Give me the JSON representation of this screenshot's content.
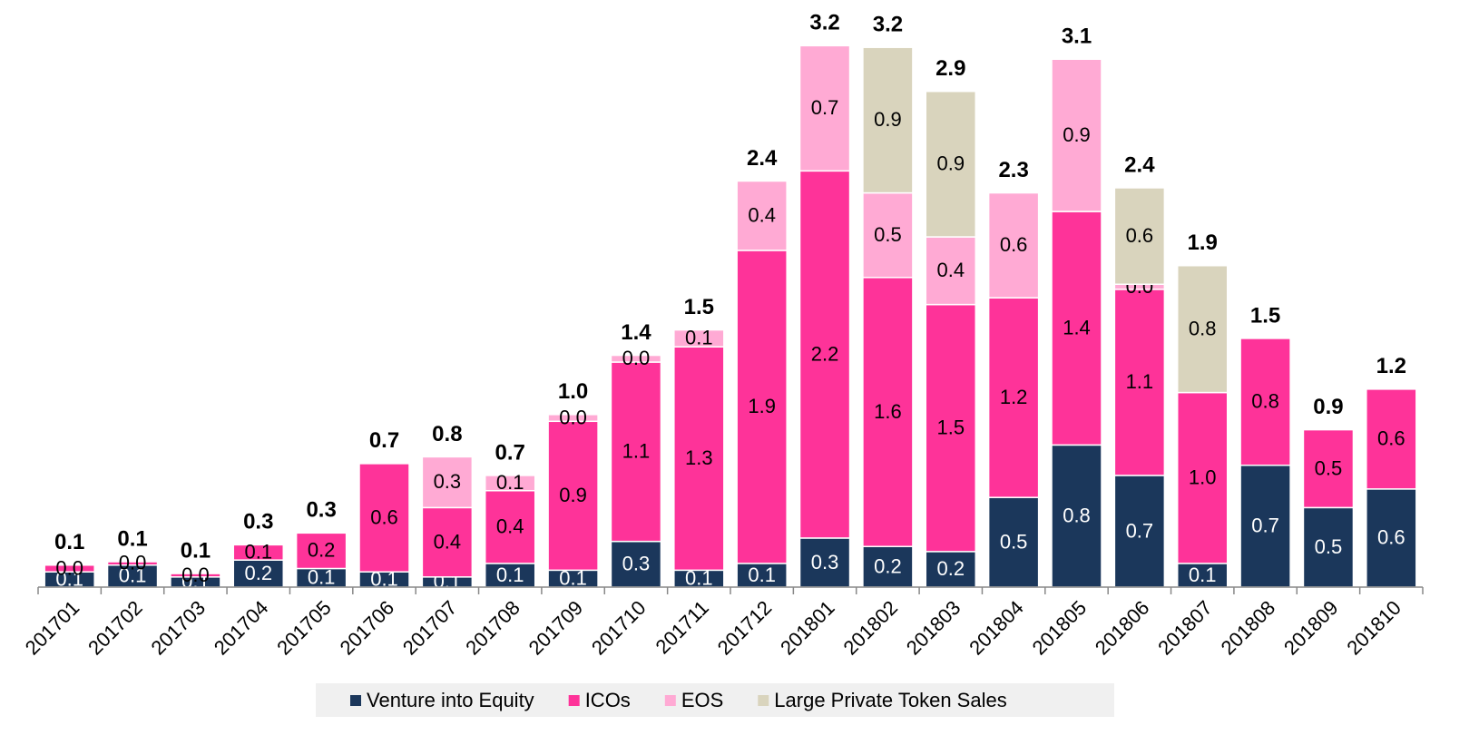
{
  "chart_data": {
    "type": "stacked_bar",
    "categories": [
      "201701",
      "201702",
      "201703",
      "201704",
      "201705",
      "201706",
      "201707",
      "201708",
      "201709",
      "201710",
      "201711",
      "201712",
      "201801",
      "201802",
      "201803",
      "201804",
      "201805",
      "201806",
      "201807",
      "201808",
      "201809",
      "201810"
    ],
    "series": [
      {
        "name": "Venture into Equity",
        "color": "#1b375b",
        "values": [
          0.09,
          0.13,
          0.06,
          0.16,
          0.11,
          0.09,
          0.06,
          0.14,
          0.1,
          0.27,
          0.1,
          0.14,
          0.29,
          0.24,
          0.21,
          0.53,
          0.84,
          0.66,
          0.14,
          0.72,
          0.47,
          0.58
        ],
        "value_labels": [
          "0.1",
          "0.1",
          "0.1",
          "0.2",
          "0.1",
          "0.1",
          "0.1",
          "0.1",
          "0.1",
          "0.3",
          "0.1",
          "0.1",
          "0.3",
          "0.2",
          "0.2",
          "0.5",
          "0.8",
          "0.7",
          "0.1",
          "0.7",
          "0.5",
          "0.6"
        ]
      },
      {
        "name": "ICOs",
        "color": "#fe3399",
        "values": [
          0.04,
          0.02,
          0.02,
          0.09,
          0.21,
          0.64,
          0.41,
          0.43,
          0.88,
          1.06,
          1.32,
          1.85,
          2.17,
          1.59,
          1.46,
          1.18,
          1.38,
          1.1,
          1.01,
          0.75,
          0.46,
          0.59
        ],
        "value_labels": [
          "0.0",
          "0.0",
          "0.0",
          "0.1",
          "0.2",
          "0.6",
          "0.4",
          "0.4",
          "0.9",
          "1.1",
          "1.3",
          "1.9",
          "2.2",
          "1.6",
          "1.5",
          "1.2",
          "1.4",
          "1.1",
          "1.0",
          "0.8",
          "0.5",
          "0.6"
        ]
      },
      {
        "name": "EOS",
        "color": "#ffaad4",
        "values": [
          null,
          null,
          null,
          null,
          null,
          null,
          0.3,
          0.09,
          0.04,
          0.04,
          0.1,
          0.41,
          0.74,
          0.5,
          0.4,
          0.62,
          0.9,
          0.03,
          null,
          null,
          null,
          null
        ],
        "value_labels": [
          null,
          null,
          null,
          null,
          null,
          null,
          "0.3",
          "0.1",
          "0.0",
          "0.0",
          "0.1",
          "0.4",
          "0.7",
          "0.5",
          "0.4",
          "0.6",
          "0.9",
          "0.0",
          null,
          null,
          null,
          null
        ]
      },
      {
        "name": "Large Private Token Sales",
        "color": "#d9d4bd",
        "values": [
          null,
          null,
          null,
          null,
          null,
          null,
          null,
          null,
          null,
          null,
          null,
          null,
          null,
          0.86,
          0.86,
          null,
          null,
          0.57,
          0.75,
          null,
          null,
          null
        ],
        "value_labels": [
          null,
          null,
          null,
          null,
          null,
          null,
          null,
          null,
          null,
          null,
          null,
          null,
          null,
          "0.9",
          "0.9",
          null,
          null,
          "0.6",
          "0.8",
          null,
          null,
          null
        ]
      }
    ],
    "totals": [
      0.13,
      0.15,
      0.08,
      0.25,
      0.32,
      0.73,
      0.77,
      0.66,
      1.02,
      1.37,
      1.52,
      2.4,
      3.2,
      3.19,
      2.93,
      2.33,
      3.12,
      2.36,
      1.9,
      1.47,
      0.93,
      1.17
    ],
    "total_labels": [
      "0.1",
      "0.1",
      "0.1",
      "0.3",
      "0.3",
      "0.7",
      "0.8",
      "0.7",
      "1.0",
      "1.4",
      "1.5",
      "2.4",
      "3.2",
      "3.2",
      "2.9",
      "2.3",
      "3.1",
      "2.4",
      "1.9",
      "1.5",
      "0.9",
      "1.2"
    ],
    "ylim": [
      0,
      3.47
    ]
  }
}
